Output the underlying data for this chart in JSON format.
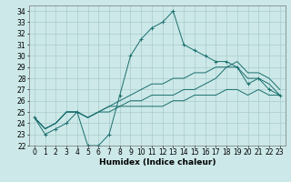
{
  "xlabel": "Humidex (Indice chaleur)",
  "ylabel": "",
  "xlim": [
    -0.5,
    23.5
  ],
  "ylim": [
    22,
    34.5
  ],
  "yticks": [
    22,
    23,
    24,
    25,
    26,
    27,
    28,
    29,
    30,
    31,
    32,
    33,
    34
  ],
  "xticks": [
    0,
    1,
    2,
    3,
    4,
    5,
    6,
    7,
    8,
    9,
    10,
    11,
    12,
    13,
    14,
    15,
    16,
    17,
    18,
    19,
    20,
    21,
    22,
    23
  ],
  "background_color": "#cce8e8",
  "grid_color": "#aacccc",
  "line_color": "#1a6e6e",
  "lines": [
    {
      "x": [
        0,
        1,
        2,
        3,
        4,
        5,
        6,
        7,
        8,
        9,
        10,
        11,
        12,
        13,
        14,
        15,
        16,
        17,
        18,
        19,
        20,
        21,
        22,
        23
      ],
      "y": [
        24.5,
        23.0,
        23.5,
        24.0,
        25.0,
        22.0,
        22.0,
        23.0,
        26.5,
        30.0,
        31.5,
        32.5,
        33.0,
        34.0,
        31.0,
        30.5,
        30.0,
        29.5,
        29.5,
        29.0,
        27.5,
        28.0,
        27.0,
        26.5
      ],
      "marker": "+"
    },
    {
      "x": [
        0,
        1,
        2,
        3,
        4,
        5,
        6,
        7,
        8,
        9,
        10,
        11,
        12,
        13,
        14,
        15,
        16,
        17,
        18,
        19,
        20,
        21,
        22,
        23
      ],
      "y": [
        24.5,
        23.5,
        24.0,
        25.0,
        25.0,
        24.5,
        25.0,
        25.0,
        25.5,
        25.5,
        25.5,
        25.5,
        25.5,
        26.0,
        26.0,
        26.5,
        26.5,
        26.5,
        27.0,
        27.0,
        26.5,
        27.0,
        26.5,
        26.5
      ],
      "marker": null
    },
    {
      "x": [
        0,
        1,
        2,
        3,
        4,
        5,
        6,
        7,
        8,
        9,
        10,
        11,
        12,
        13,
        14,
        15,
        16,
        17,
        18,
        19,
        20,
        21,
        22,
        23
      ],
      "y": [
        24.5,
        23.5,
        24.0,
        25.0,
        25.0,
        24.5,
        25.0,
        25.5,
        25.5,
        26.0,
        26.0,
        26.5,
        26.5,
        26.5,
        27.0,
        27.0,
        27.5,
        28.0,
        29.0,
        29.0,
        28.0,
        28.0,
        27.5,
        26.5
      ],
      "marker": null
    },
    {
      "x": [
        0,
        1,
        2,
        3,
        4,
        5,
        6,
        7,
        8,
        9,
        10,
        11,
        12,
        13,
        14,
        15,
        16,
        17,
        18,
        19,
        20,
        21,
        22,
        23
      ],
      "y": [
        24.5,
        23.5,
        24.0,
        25.0,
        25.0,
        24.5,
        25.0,
        25.5,
        26.0,
        26.5,
        27.0,
        27.5,
        27.5,
        28.0,
        28.0,
        28.5,
        28.5,
        29.0,
        29.0,
        29.5,
        28.5,
        28.5,
        28.0,
        27.0
      ],
      "marker": null
    }
  ],
  "title_fontsize": 6,
  "label_fontsize": 6.5,
  "tick_fontsize": 5.5
}
